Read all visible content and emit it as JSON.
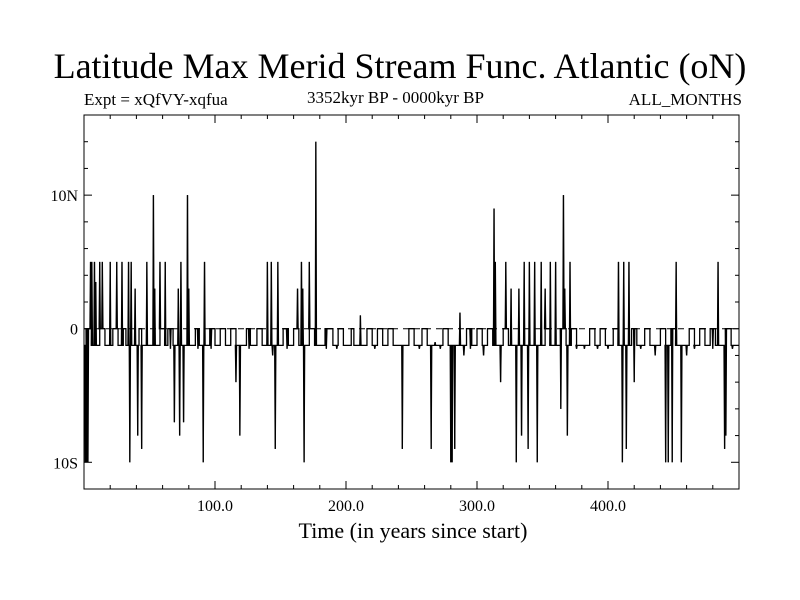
{
  "chart_data": {
    "type": "line",
    "title": "Latitude Max Merid Stream Func. Atlantic (oN)",
    "annotations": {
      "experiment": "Expt = xQfVY-xqfua",
      "period": "3352kyr BP - 0000kyr BP",
      "months": "ALL_MONTHS"
    },
    "xlabel": "Time (in years since start)",
    "ylabel": "",
    "xlim": [
      0,
      500
    ],
    "ylim": [
      -12,
      16
    ],
    "x_ticks": [
      {
        "value": 100,
        "label": "100.0"
      },
      {
        "value": 200,
        "label": "200.0"
      },
      {
        "value": 300,
        "label": "300.0"
      },
      {
        "value": 400,
        "label": "400.0"
      }
    ],
    "y_ticks": [
      {
        "value": 10,
        "label": "10N"
      },
      {
        "value": 0,
        "label": "0"
      },
      {
        "value": -10,
        "label": "10S"
      }
    ],
    "zero_line": true,
    "grid": false,
    "series": [
      {
        "name": "",
        "baseline_low": -1.25,
        "baseline_high": 0,
        "segments": [
          [
            2,
            6,
            "h"
          ],
          [
            12,
            16,
            "h"
          ],
          [
            22,
            26,
            "h"
          ],
          [
            30,
            32,
            "h"
          ],
          [
            42,
            44,
            "h"
          ],
          [
            58,
            62,
            "h"
          ],
          [
            64,
            68,
            "h"
          ],
          [
            85,
            88,
            "h"
          ],
          [
            96,
            100,
            "h"
          ],
          [
            104,
            108,
            "h"
          ],
          [
            112,
            116,
            "h"
          ],
          [
            124,
            127,
            "h"
          ],
          [
            132,
            136,
            "h"
          ],
          [
            152,
            156,
            "h"
          ],
          [
            160,
            164,
            "h"
          ],
          [
            172,
            176,
            "h"
          ],
          [
            184,
            190,
            "h"
          ],
          [
            194,
            198,
            "h"
          ],
          [
            204,
            206,
            "h"
          ],
          [
            216,
            220,
            "h"
          ],
          [
            224,
            228,
            "h"
          ],
          [
            232,
            236,
            "h"
          ],
          [
            248,
            252,
            "h"
          ],
          [
            258,
            262,
            "h"
          ],
          [
            274,
            278,
            "h"
          ],
          [
            292,
            296,
            "h"
          ],
          [
            300,
            304,
            "h"
          ],
          [
            308,
            312,
            "h"
          ],
          [
            320,
            324,
            "h"
          ],
          [
            352,
            356,
            "h"
          ],
          [
            364,
            368,
            "h"
          ],
          [
            372,
            376,
            "h"
          ],
          [
            386,
            390,
            "h"
          ],
          [
            394,
            398,
            "h"
          ],
          [
            404,
            408,
            "h"
          ],
          [
            418,
            422,
            "h"
          ],
          [
            428,
            432,
            "h"
          ],
          [
            440,
            444,
            "h"
          ],
          [
            448,
            452,
            "h"
          ],
          [
            462,
            466,
            "h"
          ],
          [
            470,
            474,
            "h"
          ],
          [
            478,
            482,
            "h"
          ],
          [
            490,
            494,
            "h"
          ]
        ],
        "spikes": [
          [
            1,
            -10
          ],
          [
            2,
            -10
          ],
          [
            3,
            -10
          ],
          [
            5,
            5
          ],
          [
            6,
            5
          ],
          [
            8,
            5
          ],
          [
            9,
            3.5
          ],
          [
            12,
            5
          ],
          [
            14,
            5
          ],
          [
            20,
            5
          ],
          [
            25,
            5
          ],
          [
            29,
            5
          ],
          [
            34,
            5
          ],
          [
            35,
            -10
          ],
          [
            36,
            5
          ],
          [
            39,
            3
          ],
          [
            41,
            -8
          ],
          [
            44,
            -9
          ],
          [
            48,
            5
          ],
          [
            53,
            10
          ],
          [
            54,
            3
          ],
          [
            58,
            5
          ],
          [
            62,
            5
          ],
          [
            66,
            -1.5
          ],
          [
            69,
            -7
          ],
          [
            72,
            3
          ],
          [
            73,
            -8
          ],
          [
            74,
            5
          ],
          [
            76,
            -7
          ],
          [
            79,
            10
          ],
          [
            80,
            3
          ],
          [
            87,
            -1.5
          ],
          [
            91,
            -10
          ],
          [
            92,
            5
          ],
          [
            97,
            -1.5
          ],
          [
            116,
            -4
          ],
          [
            119,
            -8
          ],
          [
            126,
            -1.5
          ],
          [
            140,
            5
          ],
          [
            143,
            5
          ],
          [
            144,
            -2
          ],
          [
            146,
            -9
          ],
          [
            148,
            5
          ],
          [
            155,
            -1.5
          ],
          [
            163,
            3
          ],
          [
            166,
            5
          ],
          [
            167,
            3
          ],
          [
            168,
            -10
          ],
          [
            172,
            5
          ],
          [
            177,
            14
          ],
          [
            185,
            -1.5
          ],
          [
            193,
            -1.5
          ],
          [
            211,
            1
          ],
          [
            222,
            -1.5
          ],
          [
            243,
            -9
          ],
          [
            256,
            -1.5
          ],
          [
            265,
            -9
          ],
          [
            268,
            -1
          ],
          [
            272,
            -1.5
          ],
          [
            280,
            -10
          ],
          [
            281,
            -10
          ],
          [
            283,
            -9
          ],
          [
            287,
            1.2
          ],
          [
            290,
            -2
          ],
          [
            295,
            -1.5
          ],
          [
            305,
            -2
          ],
          [
            313,
            9
          ],
          [
            314,
            5
          ],
          [
            318,
            -4
          ],
          [
            322,
            5
          ],
          [
            326,
            3
          ],
          [
            330,
            -10
          ],
          [
            332,
            3
          ],
          [
            334,
            -8
          ],
          [
            336,
            5
          ],
          [
            339,
            -9
          ],
          [
            340,
            5
          ],
          [
            344,
            5
          ],
          [
            346,
            -10
          ],
          [
            349,
            5
          ],
          [
            352,
            3
          ],
          [
            356,
            5
          ],
          [
            360,
            5
          ],
          [
            364,
            -6
          ],
          [
            366,
            10
          ],
          [
            367,
            3
          ],
          [
            369,
            -8
          ],
          [
            371,
            5
          ],
          [
            376,
            -1.5
          ],
          [
            382,
            -1.5
          ],
          [
            392,
            -1.5
          ],
          [
            400,
            -1.5
          ],
          [
            408,
            5
          ],
          [
            411,
            -10
          ],
          [
            412,
            5
          ],
          [
            414,
            -9
          ],
          [
            416,
            5
          ],
          [
            420,
            -4
          ],
          [
            425,
            -1.5
          ],
          [
            436,
            -2
          ],
          [
            444,
            -10
          ],
          [
            446,
            -10
          ],
          [
            449,
            -10
          ],
          [
            452,
            5
          ],
          [
            456,
            -10
          ],
          [
            460,
            -2
          ],
          [
            466,
            -1.5
          ],
          [
            480,
            -1.5
          ],
          [
            484,
            5
          ],
          [
            489,
            -9
          ],
          [
            490,
            -8
          ],
          [
            495,
            -1.5
          ]
        ]
      }
    ]
  }
}
